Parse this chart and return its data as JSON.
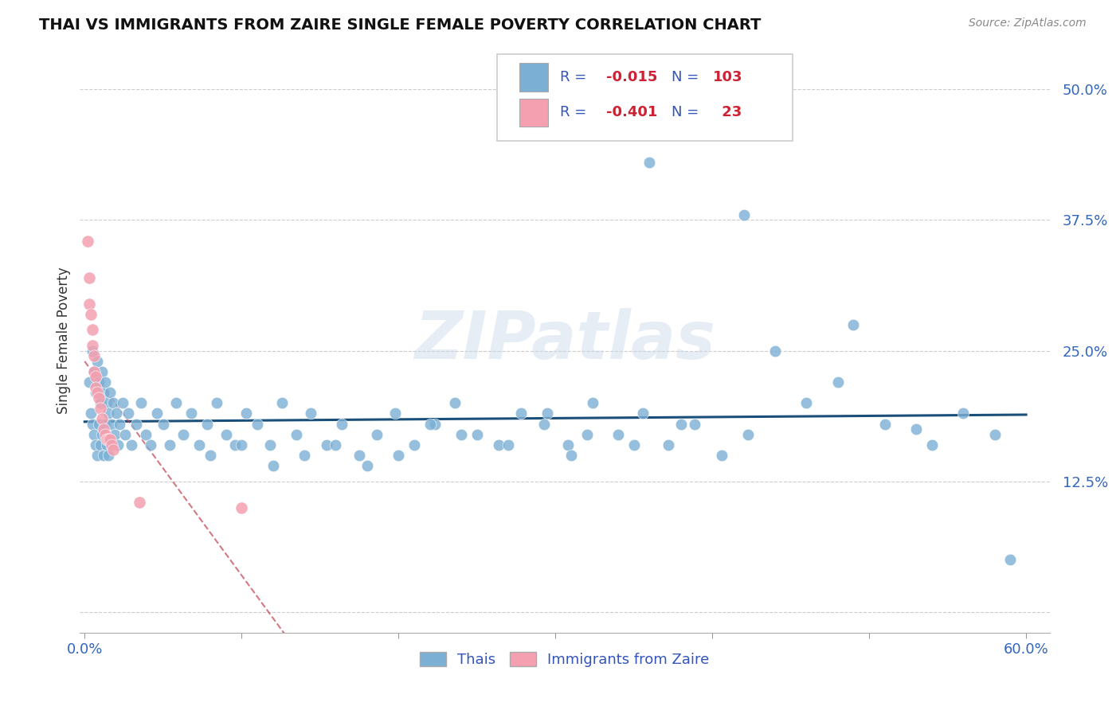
{
  "title": "THAI VS IMMIGRANTS FROM ZAIRE SINGLE FEMALE POVERTY CORRELATION CHART",
  "source": "Source: ZipAtlas.com",
  "ylabel": "Single Female Poverty",
  "ytick_values": [
    0.0,
    0.125,
    0.25,
    0.375,
    0.5
  ],
  "xlim": [
    0.0,
    0.6
  ],
  "ylim": [
    -0.02,
    0.54
  ],
  "blue_color": "#7bafd4",
  "pink_color": "#f4a0b0",
  "line_blue_color": "#1a4f7a",
  "line_pink_color": "#c04050",
  "watermark": "ZIPatlas",
  "thai_x": [
    0.003,
    0.004,
    0.005,
    0.005,
    0.006,
    0.006,
    0.007,
    0.007,
    0.008,
    0.008,
    0.009,
    0.009,
    0.01,
    0.01,
    0.011,
    0.011,
    0.012,
    0.012,
    0.013,
    0.013,
    0.014,
    0.014,
    0.015,
    0.015,
    0.016,
    0.017,
    0.018,
    0.019,
    0.02,
    0.021,
    0.022,
    0.024,
    0.026,
    0.028,
    0.03,
    0.033,
    0.036,
    0.039,
    0.042,
    0.046,
    0.05,
    0.054,
    0.058,
    0.063,
    0.068,
    0.073,
    0.078,
    0.084,
    0.09,
    0.096,
    0.103,
    0.11,
    0.118,
    0.126,
    0.135,
    0.144,
    0.154,
    0.164,
    0.175,
    0.186,
    0.198,
    0.21,
    0.223,
    0.236,
    0.25,
    0.264,
    0.278,
    0.293,
    0.308,
    0.324,
    0.34,
    0.356,
    0.372,
    0.389,
    0.406,
    0.423,
    0.36,
    0.42,
    0.49,
    0.53,
    0.44,
    0.46,
    0.48,
    0.51,
    0.54,
    0.56,
    0.58,
    0.59,
    0.295,
    0.32,
    0.35,
    0.38,
    0.31,
    0.27,
    0.24,
    0.22,
    0.2,
    0.18,
    0.16,
    0.14,
    0.12,
    0.1,
    0.08
  ],
  "thai_y": [
    0.22,
    0.19,
    0.25,
    0.18,
    0.23,
    0.17,
    0.21,
    0.16,
    0.24,
    0.15,
    0.22,
    0.18,
    0.2,
    0.16,
    0.23,
    0.17,
    0.21,
    0.15,
    0.22,
    0.18,
    0.2,
    0.16,
    0.19,
    0.15,
    0.21,
    0.18,
    0.2,
    0.17,
    0.19,
    0.16,
    0.18,
    0.2,
    0.17,
    0.19,
    0.16,
    0.18,
    0.2,
    0.17,
    0.16,
    0.19,
    0.18,
    0.16,
    0.2,
    0.17,
    0.19,
    0.16,
    0.18,
    0.2,
    0.17,
    0.16,
    0.19,
    0.18,
    0.16,
    0.2,
    0.17,
    0.19,
    0.16,
    0.18,
    0.15,
    0.17,
    0.19,
    0.16,
    0.18,
    0.2,
    0.17,
    0.16,
    0.19,
    0.18,
    0.16,
    0.2,
    0.17,
    0.19,
    0.16,
    0.18,
    0.15,
    0.17,
    0.43,
    0.38,
    0.275,
    0.175,
    0.25,
    0.2,
    0.22,
    0.18,
    0.16,
    0.19,
    0.17,
    0.05,
    0.19,
    0.17,
    0.16,
    0.18,
    0.15,
    0.16,
    0.17,
    0.18,
    0.15,
    0.14,
    0.16,
    0.15,
    0.14,
    0.16,
    0.15
  ],
  "zaire_x": [
    0.002,
    0.003,
    0.003,
    0.004,
    0.005,
    0.005,
    0.006,
    0.006,
    0.007,
    0.007,
    0.008,
    0.009,
    0.01,
    0.011,
    0.012,
    0.013,
    0.014,
    0.015,
    0.016,
    0.017,
    0.018,
    0.035,
    0.1
  ],
  "zaire_y": [
    0.355,
    0.32,
    0.295,
    0.285,
    0.27,
    0.255,
    0.245,
    0.23,
    0.225,
    0.215,
    0.21,
    0.205,
    0.195,
    0.185,
    0.175,
    0.17,
    0.165,
    0.165,
    0.165,
    0.16,
    0.155,
    0.105,
    0.1
  ]
}
